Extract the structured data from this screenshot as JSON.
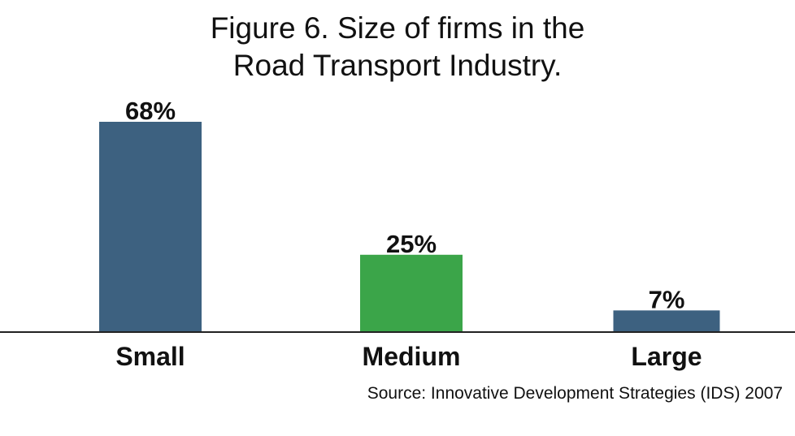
{
  "chart_data": {
    "type": "bar",
    "title_lines": [
      "Figure 6. Size of firms in the",
      "Road Transport Industry."
    ],
    "categories": [
      "Small",
      "Medium",
      "Large"
    ],
    "values": [
      68,
      25,
      7
    ],
    "value_labels": [
      "68%",
      "25%",
      "7%"
    ],
    "colors": [
      "#3d6180",
      "#3ba549",
      "#3d6180"
    ],
    "ylim": [
      0,
      68
    ],
    "source": "Source: Innovative Development Strategies (IDS) 2007",
    "xlabel": "",
    "ylabel": "",
    "grid": false
  },
  "colors": {
    "axis": "#222222",
    "text": "#111111"
  }
}
